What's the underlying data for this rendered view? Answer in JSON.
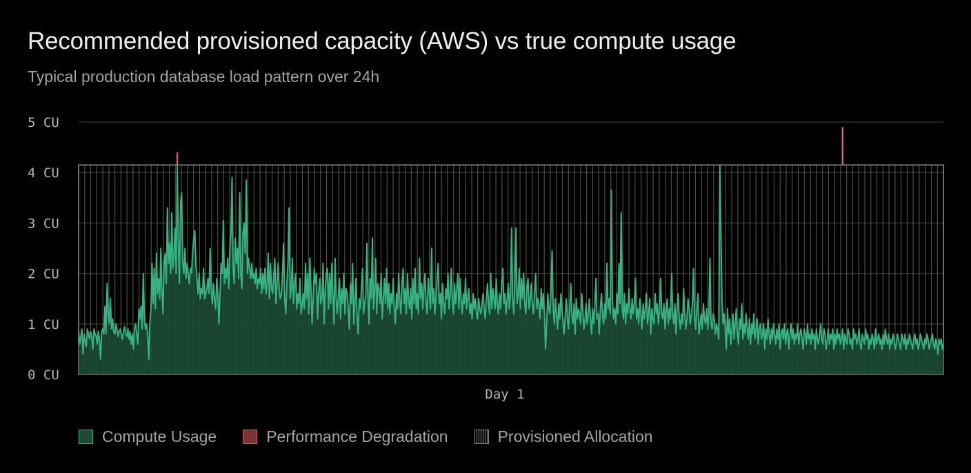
{
  "header": {
    "title": "Recommended provisioned capacity (AWS) vs true compute usage",
    "subtitle": "Typical production database load pattern over 24h"
  },
  "legend": {
    "items": [
      {
        "label": "Compute Usage",
        "icon": "usage-swatch-icon"
      },
      {
        "label": "Performance Degradation",
        "icon": "degradation-swatch-icon"
      },
      {
        "label": "Provisioned Allocation",
        "icon": "provisioned-swatch-icon"
      }
    ]
  },
  "colors": {
    "usage_fill": "#1c4a36",
    "usage_line": "#38b183",
    "degradation": "#d06262",
    "provisioned": "#8a8a8a",
    "grid": "#2e2e2e",
    "background": "#000000"
  },
  "chart_data": {
    "type": "area",
    "title": "Recommended provisioned capacity (AWS) vs true compute usage",
    "subtitle": "Typical production database load pattern over 24h",
    "xlabel": "Day 1",
    "ylabel": "",
    "ylim": [
      0,
      5
    ],
    "y_ticks": [
      "0 CU",
      "1 CU",
      "2 CU",
      "3 CU",
      "4 CU",
      "5 CU"
    ],
    "x_tick_labels": [
      "Day 1"
    ],
    "provisioned_capacity": 4.15,
    "grid": true,
    "legend_position": "bottom-left",
    "series": [
      {
        "name": "Compute Usage",
        "values": [
          0.85,
          0.6,
          0.75,
          0.9,
          0.4,
          0.8,
          0.65,
          0.55,
          0.9,
          0.8,
          0.7,
          0.85,
          0.75,
          0.5,
          0.9,
          0.8,
          0.75,
          0.6,
          0.85,
          0.7,
          0.3,
          0.85,
          0.9,
          0.8,
          1.35,
          0.8,
          1.8,
          1.2,
          1.0,
          1.5,
          0.9,
          1.1,
          0.85,
          0.8,
          1.0,
          0.9,
          0.75,
          0.85,
          0.9,
          0.8,
          0.7,
          0.85,
          0.95,
          0.8,
          0.75,
          0.9,
          0.7,
          0.85,
          0.6,
          0.8,
          0.5,
          0.9,
          1.0,
          0.8,
          0.6,
          1.3,
          1.1,
          1.35,
          0.9,
          2.0,
          1.1,
          0.9,
          1.0,
          0.8,
          0.3,
          1.0,
          1.3,
          2.2,
          1.4,
          2.1,
          1.3,
          2.4,
          1.6,
          1.9,
          1.5,
          2.5,
          1.7,
          1.2,
          2.2,
          2.4,
          1.8,
          3.3,
          2.2,
          2.6,
          2.0,
          3.2,
          2.1,
          2.4,
          2.9,
          2.0,
          4.15,
          2.6,
          1.8,
          3.4,
          3.6,
          2.2,
          2.0,
          2.5,
          1.9,
          2.2,
          2.0,
          1.8,
          2.1,
          2.0,
          2.4,
          2.7,
          2.85,
          2.2,
          1.9,
          1.6,
          2.0,
          1.5,
          1.7,
          1.6,
          2.1,
          1.5,
          1.6,
          1.7,
          1.9,
          1.6,
          2.5,
          1.7,
          1.4,
          1.8,
          1.5,
          1.3,
          1.9,
          1.6,
          1.0,
          1.6,
          2.2,
          2.0,
          3.05,
          1.8,
          2.1,
          1.9,
          2.3,
          1.7,
          2.5,
          2.8,
          3.9,
          2.1,
          1.8,
          2.7,
          2.2,
          2.5,
          1.9,
          3.6,
          2.0,
          1.7,
          2.8,
          3.0,
          2.4,
          3.85,
          2.0,
          2.3,
          2.1,
          1.9,
          2.2,
          1.9,
          2.0,
          1.8,
          2.1,
          1.7,
          1.9,
          1.8,
          2.1,
          1.6,
          2.0,
          1.7,
          2.1,
          1.6,
          1.8,
          2.4,
          1.5,
          2.2,
          1.7,
          1.6,
          1.9,
          2.3,
          1.4,
          1.8,
          2.2,
          1.7,
          1.5,
          1.6,
          2.0,
          2.6,
          1.5,
          1.2,
          1.8,
          2.2,
          3.3,
          1.5,
          1.7,
          2.3,
          1.4,
          1.8,
          2.0,
          1.3,
          1.6,
          1.4,
          1.9,
          1.2,
          1.4,
          1.6,
          1.3,
          2.2,
          1.5,
          2.0,
          1.2,
          2.3,
          1.7,
          1.0,
          1.5,
          2.1,
          1.8,
          2.0,
          1.1,
          1.6,
          1.9,
          1.4,
          1.5,
          2.2,
          1.0,
          1.7,
          2.0,
          2.1,
          1.3,
          2.0,
          1.4,
          2.2,
          1.6,
          1.0,
          2.3,
          1.5,
          1.2,
          1.6,
          1.9,
          1.1,
          1.7,
          1.4,
          2.0,
          1.2,
          1.7,
          1.6,
          1.3,
          0.9,
          1.8,
          1.4,
          2.2,
          1.0,
          1.4,
          1.9,
          1.2,
          0.8,
          1.5,
          1.3,
          1.7,
          2.1,
          1.2,
          1.4,
          1.6,
          2.6,
          1.5,
          1.0,
          1.9,
          1.5,
          2.7,
          1.3,
          1.6,
          2.3,
          1.2,
          1.8,
          1.7,
          1.4,
          2.0,
          1.1,
          1.5,
          1.9,
          1.4,
          2.1,
          1.3,
          1.8,
          1.2,
          1.6,
          1.4,
          1.9,
          1.3,
          1.0,
          1.6,
          1.3,
          2.0,
          1.5,
          1.2,
          1.8,
          2.1,
          1.4,
          1.7,
          1.2,
          2.0,
          1.5,
          1.3,
          1.7,
          1.1,
          1.9,
          1.4,
          2.1,
          1.3,
          1.6,
          1.2,
          2.3,
          1.5,
          1.8,
          1.3,
          1.7,
          2.0,
          1.4,
          1.2,
          1.9,
          1.6,
          1.3,
          2.5,
          1.4,
          1.7,
          1.2,
          1.5,
          1.9,
          2.2,
          1.4,
          1.6,
          1.1,
          1.8,
          1.4,
          1.2,
          1.7,
          1.5,
          2.0,
          1.3,
          1.6,
          2.1,
          1.5,
          1.2,
          1.8,
          1.4,
          1.7,
          2.0,
          1.3,
          1.9,
          1.5,
          1.2,
          1.6,
          1.4,
          1.9,
          1.3,
          1.5,
          1.7,
          1.2,
          1.4,
          1.1,
          1.6,
          1.3,
          1.5,
          1.2,
          1.1,
          1.5,
          1.3,
          1.2,
          1.4,
          1.6,
          1.3,
          1.1,
          1.5,
          1.8,
          1.4,
          1.2,
          2.0,
          1.3,
          1.7,
          1.5,
          1.3,
          1.9,
          1.4,
          1.2,
          1.6,
          1.3,
          1.8,
          2.1,
          1.4,
          1.6,
          1.2,
          1.5,
          1.8,
          1.3,
          1.6,
          2.9,
          1.5,
          1.2,
          1.8,
          2.9,
          1.4,
          1.6,
          2.1,
          1.3,
          1.9,
          1.5,
          2.0,
          1.4,
          1.2,
          1.7,
          1.9,
          1.3,
          1.5,
          1.8,
          1.4,
          1.2,
          1.6,
          2.0,
          1.3,
          1.5,
          1.4,
          1.1,
          1.7,
          1.3,
          1.6,
          1.2,
          0.5,
          1.0,
          1.6,
          1.3,
          1.2,
          1.7,
          2.45,
          1.3,
          1.0,
          1.5,
          1.2,
          0.9,
          1.4,
          1.1,
          1.6,
          1.3,
          1.0,
          0.8,
          1.2,
          1.5,
          1.1,
          0.9,
          1.3,
          1.8,
          1.2,
          1.0,
          1.4,
          0.8,
          1.5,
          1.1,
          1.3,
          1.2,
          1.0,
          1.6,
          1.3,
          0.9,
          1.1,
          1.4,
          1.0,
          1.2,
          1.5,
          1.1,
          0.8,
          1.3,
          1.0,
          1.4,
          1.9,
          1.1,
          1.2,
          0.8,
          1.3,
          1.6,
          1.2,
          1.0,
          1.4,
          1.1,
          2.2,
          1.3,
          1.5,
          1.2,
          3.65,
          1.5,
          1.1,
          1.3,
          1.0,
          1.6,
          1.2,
          2.2,
          1.4,
          3.2,
          1.3,
          1.1,
          1.6,
          1.0,
          1.4,
          1.2,
          1.7,
          1.3,
          1.1,
          1.5,
          1.2,
          1.4,
          1.9,
          1.1,
          1.3,
          1.0,
          1.5,
          1.2,
          0.9,
          1.4,
          1.1,
          1.3,
          1.6,
          1.0,
          1.2,
          1.5,
          0.8,
          1.3,
          1.1,
          1.0,
          1.6,
          1.2,
          1.4,
          1.0,
          1.3,
          1.9,
          1.2,
          1.1,
          1.4,
          0.9,
          1.2,
          1.5,
          1.0,
          1.3,
          1.1,
          2.0,
          1.2,
          1.0,
          1.4,
          0.8,
          1.3,
          1.6,
          1.1,
          0.9,
          1.2,
          1.0,
          1.7,
          1.2,
          0.9,
          1.1,
          1.5,
          1.3,
          1.0,
          1.2,
          1.4,
          2.1,
          1.1,
          0.9,
          1.3,
          1.6,
          0.8,
          1.0,
          1.2,
          0.9,
          1.4,
          1.1,
          1.0,
          1.3,
          0.9,
          1.2,
          2.3,
          1.0,
          0.9,
          1.2,
          1.1,
          0.8,
          1.0,
          0.9,
          0.7,
          4.15,
          2.8,
          1.5,
          1.0,
          1.2,
          0.9,
          0.5,
          1.3,
          0.8,
          1.1,
          0.6,
          0.9,
          1.2,
          0.7,
          1.0,
          1.3,
          0.8,
          0.6,
          1.1,
          0.9,
          1.4,
          0.7,
          1.0,
          0.8,
          1.2,
          0.9,
          0.7,
          1.1,
          0.6,
          1.0,
          0.8,
          1.2,
          0.7,
          0.9,
          1.1,
          0.6,
          0.9,
          1.0,
          0.7,
          0.8,
          1.0,
          0.5,
          0.9,
          0.7,
          1.1,
          0.8,
          0.6,
          0.9,
          0.7,
          1.0,
          0.8,
          0.6,
          0.9,
          0.7,
          1.0,
          0.5,
          0.8,
          0.9,
          0.7,
          1.0,
          0.6,
          0.8,
          0.9,
          0.5,
          0.8,
          1.0,
          0.7,
          0.9,
          0.6,
          0.8,
          0.7,
          1.0,
          0.6,
          0.8,
          0.9,
          0.7,
          0.5,
          0.9,
          0.8,
          0.6,
          1.0,
          0.7,
          0.8,
          0.6,
          0.9,
          0.7,
          0.8,
          0.5,
          0.9,
          0.7,
          0.6,
          0.8,
          1.0,
          0.7,
          0.6,
          0.9,
          0.8,
          0.5,
          0.7,
          0.9,
          0.6,
          0.8,
          0.7,
          0.9,
          0.5,
          0.8,
          0.6,
          0.9,
          0.7,
          0.8,
          0.6,
          0.7,
          0.9,
          0.5,
          0.8,
          0.7,
          0.6,
          0.9,
          0.8,
          0.6,
          0.7,
          0.5,
          0.9,
          0.7,
          0.8,
          0.6,
          0.7,
          0.9,
          0.6,
          0.5,
          0.8,
          0.7,
          0.6,
          0.9,
          0.7,
          0.8,
          0.5,
          0.7,
          0.6,
          0.8,
          0.7,
          0.5,
          0.9,
          0.6,
          0.7,
          0.8,
          0.6,
          0.7,
          0.5,
          0.8,
          0.6,
          0.9,
          0.7,
          0.6,
          0.8,
          0.5,
          0.7,
          0.6,
          0.8,
          0.7,
          0.5,
          0.6,
          0.8,
          0.7,
          0.6,
          0.5,
          0.8,
          0.7,
          0.6,
          0.8,
          0.5,
          0.7,
          0.6,
          0.8,
          0.7,
          0.6,
          0.5,
          0.7,
          0.8,
          0.6,
          0.7,
          0.5,
          0.6,
          0.8,
          0.7,
          0.6,
          0.5,
          0.7,
          0.6,
          0.8,
          0.7,
          0.5,
          0.6,
          0.7,
          0.8,
          0.6,
          0.5,
          0.7,
          0.6,
          0.4,
          0.7,
          0.6,
          0.7,
          0.5,
          0.6
        ]
      },
      {
        "name": "Performance Degradation",
        "peaks": [
          {
            "index": 90,
            "value": 4.4
          },
          {
            "index": 697,
            "value": 4.9
          }
        ]
      }
    ]
  }
}
